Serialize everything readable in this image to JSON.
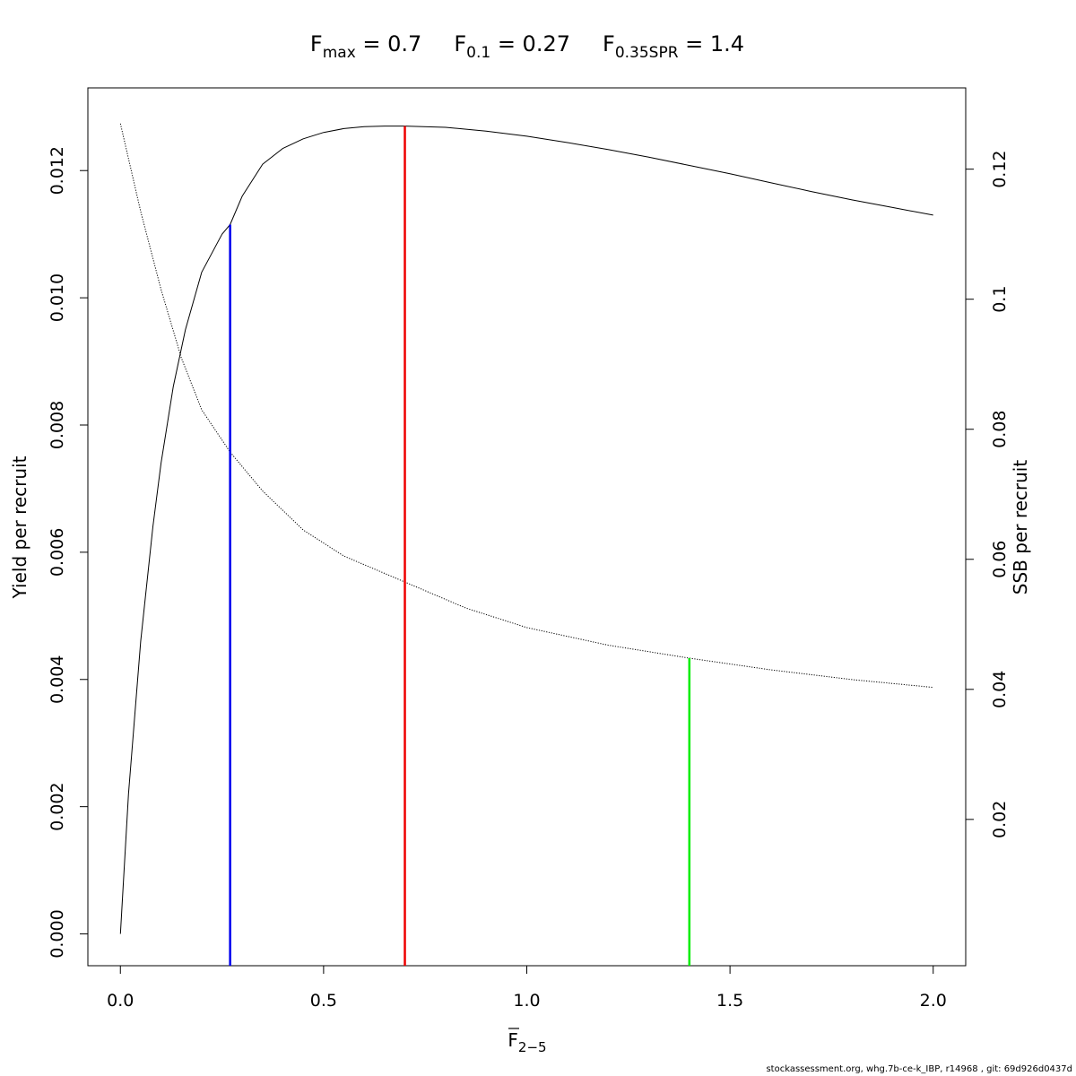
{
  "chart_data": {
    "type": "line",
    "title_parts": [
      {
        "main": "F",
        "sub": "max",
        "rest": " = 0.7"
      },
      {
        "main": "F",
        "sub": "0.1",
        "rest": " = 0.27"
      },
      {
        "main": "F",
        "sub": "0.35SPR",
        "rest": " = 1.4"
      }
    ],
    "xlabel_main": "F",
    "xlabel_sub": "2−5",
    "ylabel_left": "Yield per recruit",
    "ylabel_right": "SSB per recruit",
    "xlim": [
      -0.08,
      2.08
    ],
    "ylim_left": [
      -0.0005,
      0.0133
    ],
    "ylim_right": [
      -0.0025,
      0.1325
    ],
    "x_ticks": [
      0.0,
      0.5,
      1.0,
      1.5,
      2.0
    ],
    "x_tick_labels": [
      "0.0",
      "0.5",
      "1.0",
      "1.5",
      "2.0"
    ],
    "y_left_ticks": [
      0.0,
      0.002,
      0.004,
      0.006,
      0.008,
      0.01,
      0.012
    ],
    "y_left_tick_labels": [
      "0.000",
      "0.002",
      "0.004",
      "0.006",
      "0.008",
      "0.010",
      "0.012"
    ],
    "y_right_ticks": [
      0.02,
      0.04,
      0.06,
      0.08,
      0.1,
      0.12
    ],
    "y_right_tick_labels": [
      "0.02",
      "0.04",
      "0.06",
      "0.08",
      "0.1",
      "0.12"
    ],
    "series": [
      {
        "axis": "left",
        "style": "solid",
        "color": "#000000",
        "x": [
          0.0,
          0.02,
          0.05,
          0.08,
          0.1,
          0.13,
          0.16,
          0.2,
          0.25,
          0.27,
          0.3,
          0.35,
          0.4,
          0.45,
          0.5,
          0.55,
          0.6,
          0.65,
          0.7,
          0.8,
          0.9,
          1.0,
          1.1,
          1.2,
          1.3,
          1.4,
          1.5,
          1.6,
          1.7,
          1.8,
          1.9,
          2.0
        ],
        "y": [
          0.0,
          0.0022,
          0.0046,
          0.0064,
          0.0074,
          0.0086,
          0.0095,
          0.0104,
          0.011,
          0.01115,
          0.0116,
          0.0121,
          0.01235,
          0.0125,
          0.0126,
          0.01266,
          0.01269,
          0.0127,
          0.0127,
          0.01268,
          0.01262,
          0.01254,
          0.01244,
          0.01233,
          0.01221,
          0.01208,
          0.01195,
          0.01181,
          0.01167,
          0.01154,
          0.01142,
          0.0113
        ]
      },
      {
        "axis": "right",
        "style": "dotted",
        "color": "#000000",
        "x": [
          0.0,
          0.05,
          0.1,
          0.15,
          0.2,
          0.27,
          0.35,
          0.45,
          0.55,
          0.7,
          0.85,
          1.0,
          1.2,
          1.4,
          1.6,
          1.8,
          2.0
        ],
        "y": [
          0.127,
          0.1135,
          0.1015,
          0.091,
          0.083,
          0.0765,
          0.0705,
          0.0645,
          0.0605,
          0.0565,
          0.0525,
          0.0495,
          0.0468,
          0.0448,
          0.043,
          0.0415,
          0.0403
        ]
      }
    ],
    "reference_lines": [
      {
        "name": "F0.1",
        "x": 0.27,
        "y_top": 0.01115,
        "axis": "left",
        "color": "#0000ee"
      },
      {
        "name": "Fmax",
        "x": 0.7,
        "y_top": 0.0127,
        "axis": "left",
        "color": "#ee0000"
      },
      {
        "name": "F0.35SPR",
        "x": 1.4,
        "y_top": 0.0448,
        "axis": "right",
        "color": "#00ee00"
      }
    ],
    "grid": false
  },
  "footer": "stockassessment.org, whg.7b-ce-k_IBP, r14968 , git: 69d926d0437d"
}
